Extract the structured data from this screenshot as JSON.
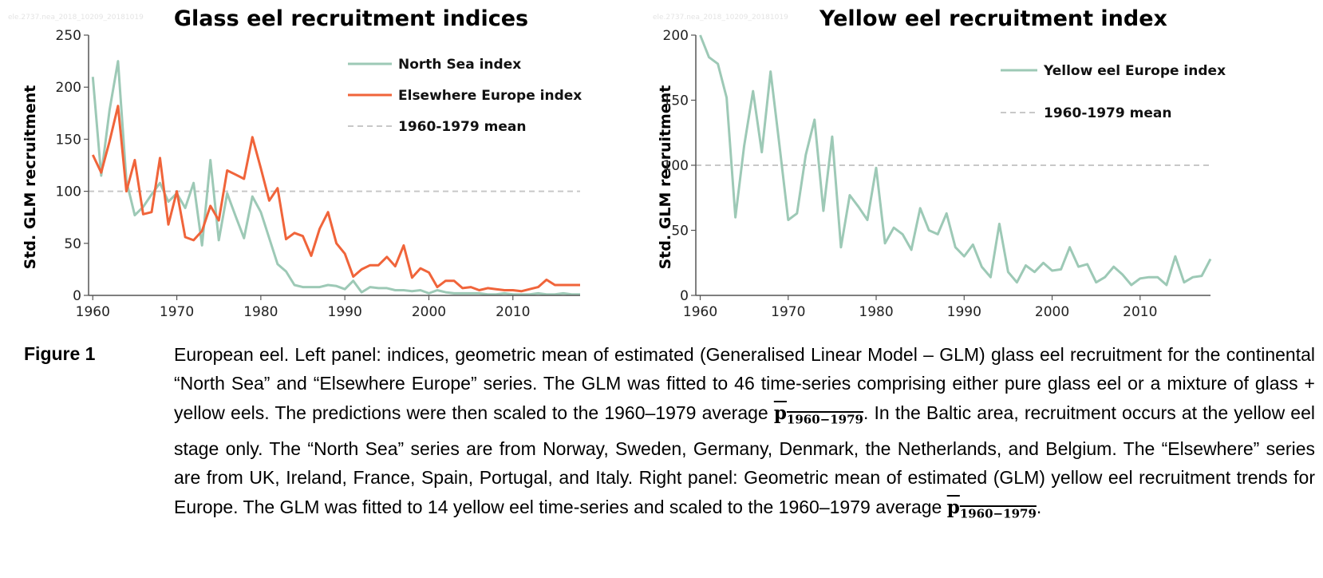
{
  "left_panel": {
    "title": "Glass eel recruitment indices",
    "ylabel": "Std. GLM recruitment",
    "watermark": "ele.2737.nea_2018_10209_20181019",
    "legend": [
      "North Sea index",
      "Elsewhere Europe index",
      "1960-1979 mean"
    ]
  },
  "right_panel": {
    "title": "Yellow eel recruitment index",
    "ylabel": "Std. GLM recruitment",
    "watermark": "ele.2737.nea_2018_10209_20181019",
    "legend": [
      "Yellow eel Europe index",
      "1960-1979 mean"
    ]
  },
  "caption": {
    "label": "Figure 1",
    "text_before_first_pbar": "European eel. Left panel: indices, geometric mean of estimated (Generalised Linear Model – GLM) glass eel recruitment for the continental “North Sea” and “Elsewhere Europe” series. The GLM was fitted to 46 time-series comprising either pure glass eel or a mixture of glass + yellow eels. The predictions were then scaled to the 1960–1979 average ",
    "pbar_symbol": "p",
    "pbar_subscript": "1960−1979",
    "text_middle": ". In the Baltic area, recruitment occurs at the yellow eel stage only. The “North Sea” series are from Norway, Sweden, Germany, Denmark, the Netherlands, and Belgium. The “Elsewhere” series are from UK, Ireland, France, Spain, Portugal, and Italy. Right panel: Geometric mean of estimated (GLM) yellow eel recruitment trends for Europe. The GLM was fitted to 14 yellow eel time-series and scaled to the 1960–1979 average ",
    "text_end": "."
  },
  "colors": {
    "north_sea": "#9dc9b6",
    "elsewhere": "#f0643a",
    "yellow": "#9dc9b6",
    "mean_line": "#c8c8c8",
    "axis": "#555555"
  },
  "chart_data": [
    {
      "type": "line",
      "title": "Glass eel recruitment indices",
      "xlabel": "",
      "ylabel": "Std. GLM recruitment",
      "xlim": [
        1959.5,
        2018
      ],
      "ylim": [
        0,
        250
      ],
      "xticks": [
        1960,
        1970,
        1980,
        1990,
        2000,
        2010
      ],
      "yticks": [
        0,
        50,
        100,
        150,
        200,
        250
      ],
      "grid": false,
      "legend_position": "top-right",
      "reference_line": {
        "name": "1960-1979 mean",
        "y": 100,
        "style": "dashed"
      },
      "series": [
        {
          "name": "North Sea index",
          "x": [
            1960,
            1961,
            1962,
            1963,
            1964,
            1965,
            1966,
            1967,
            1968,
            1969,
            1970,
            1971,
            1972,
            1973,
            1974,
            1975,
            1976,
            1977,
            1978,
            1979,
            1980,
            1981,
            1982,
            1983,
            1984,
            1985,
            1986,
            1987,
            1988,
            1989,
            1990,
            1991,
            1992,
            1993,
            1994,
            1995,
            1996,
            1997,
            1998,
            1999,
            2000,
            2001,
            2002,
            2003,
            2004,
            2005,
            2006,
            2007,
            2008,
            2009,
            2010,
            2011,
            2012,
            2013,
            2014,
            2015,
            2016,
            2017,
            2018
          ],
          "values": [
            210,
            115,
            178,
            225,
            110,
            77,
            85,
            97,
            108,
            90,
            98,
            84,
            108,
            48,
            130,
            53,
            98,
            76,
            55,
            95,
            80,
            55,
            30,
            23,
            10,
            8,
            8,
            8,
            10,
            9,
            6,
            14,
            3,
            8,
            7,
            7,
            5,
            5,
            4,
            5,
            2,
            5,
            3,
            2,
            2,
            2,
            2,
            1,
            1,
            2,
            1,
            1,
            1,
            2,
            1,
            1,
            2,
            1,
            1
          ]
        },
        {
          "name": "Elsewhere Europe index",
          "x": [
            1960,
            1961,
            1962,
            1963,
            1964,
            1965,
            1966,
            1967,
            1968,
            1969,
            1970,
            1971,
            1972,
            1973,
            1974,
            1975,
            1976,
            1977,
            1978,
            1979,
            1980,
            1981,
            1982,
            1983,
            1984,
            1985,
            1986,
            1987,
            1988,
            1989,
            1990,
            1991,
            1992,
            1993,
            1994,
            1995,
            1996,
            1997,
            1998,
            1999,
            2000,
            2001,
            2002,
            2003,
            2004,
            2005,
            2006,
            2007,
            2008,
            2009,
            2010,
            2011,
            2012,
            2013,
            2014,
            2015,
            2016,
            2017,
            2018
          ],
          "values": [
            135,
            118,
            148,
            182,
            100,
            130,
            78,
            80,
            132,
            68,
            100,
            56,
            53,
            62,
            86,
            72,
            120,
            116,
            112,
            152,
            122,
            91,
            103,
            54,
            60,
            57,
            38,
            64,
            80,
            50,
            40,
            18,
            25,
            29,
            29,
            37,
            28,
            48,
            17,
            26,
            22,
            8,
            14,
            14,
            7,
            8,
            5,
            7,
            6,
            5,
            5,
            4,
            6,
            8,
            15,
            10,
            10,
            10,
            10
          ]
        }
      ]
    },
    {
      "type": "line",
      "title": "Yellow eel recruitment index",
      "xlabel": "",
      "ylabel": "Std. GLM recruitment",
      "xlim": [
        1959.5,
        2018
      ],
      "ylim": [
        0,
        200
      ],
      "xticks": [
        1960,
        1970,
        1980,
        1990,
        2000,
        2010
      ],
      "yticks": [
        0,
        50,
        100,
        150,
        200
      ],
      "grid": false,
      "legend_position": "top-right",
      "reference_line": {
        "name": "1960-1979 mean",
        "y": 100,
        "style": "dashed"
      },
      "series": [
        {
          "name": "Yellow eel Europe index",
          "x": [
            1960,
            1961,
            1962,
            1963,
            1964,
            1965,
            1966,
            1967,
            1968,
            1969,
            1970,
            1971,
            1972,
            1973,
            1974,
            1975,
            1976,
            1977,
            1978,
            1979,
            1980,
            1981,
            1982,
            1983,
            1984,
            1985,
            1986,
            1987,
            1988,
            1989,
            1990,
            1991,
            1992,
            1993,
            1994,
            1995,
            1996,
            1997,
            1998,
            1999,
            2000,
            2001,
            2002,
            2003,
            2004,
            2005,
            2006,
            2007,
            2008,
            2009,
            2010,
            2011,
            2012,
            2013,
            2014,
            2015,
            2016,
            2017,
            2018
          ],
          "values": [
            200,
            183,
            178,
            152,
            60,
            115,
            157,
            110,
            172,
            116,
            58,
            63,
            108,
            135,
            65,
            122,
            37,
            77,
            68,
            58,
            98,
            40,
            52,
            47,
            35,
            67,
            50,
            47,
            63,
            37,
            30,
            39,
            22,
            14,
            55,
            18,
            10,
            23,
            18,
            25,
            19,
            20,
            37,
            22,
            24,
            10,
            14,
            22,
            16,
            8,
            13,
            14,
            14,
            8,
            30,
            10,
            14,
            15,
            28
          ]
        }
      ]
    }
  ]
}
